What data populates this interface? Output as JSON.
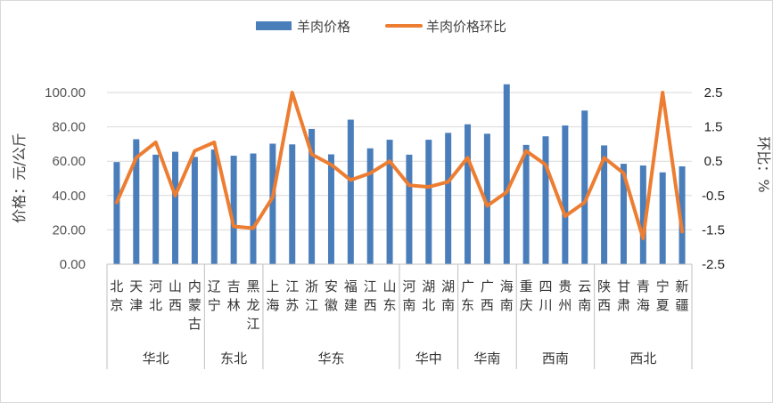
{
  "chart_data": {
    "type": "bar",
    "categories": [
      [
        "北",
        "京"
      ],
      [
        "天",
        "津"
      ],
      [
        "河",
        "北"
      ],
      [
        "山",
        "西"
      ],
      [
        "内",
        "蒙",
        "古"
      ],
      [
        "辽",
        "宁"
      ],
      [
        "吉",
        "林"
      ],
      [
        "黑",
        "龙",
        "江"
      ],
      [
        "上",
        "海"
      ],
      [
        "江",
        "苏"
      ],
      [
        "浙",
        "江"
      ],
      [
        "安",
        "徽"
      ],
      [
        "福",
        "建"
      ],
      [
        "江",
        "西"
      ],
      [
        "山",
        "东"
      ],
      [
        "河",
        "南"
      ],
      [
        "湖",
        "北"
      ],
      [
        "湖",
        "南"
      ],
      [
        "广",
        "东"
      ],
      [
        "广",
        "西"
      ],
      [
        "海",
        "南"
      ],
      [
        "重",
        "庆"
      ],
      [
        "四",
        "川"
      ],
      [
        "贵",
        "州"
      ],
      [
        "云",
        "南"
      ],
      [
        "陕",
        "西"
      ],
      [
        "甘",
        "肃"
      ],
      [
        "青",
        "海"
      ],
      [
        "宁",
        "夏"
      ],
      [
        "新",
        "疆"
      ]
    ],
    "groups": [
      {
        "name": "华北",
        "count": 5
      },
      {
        "name": "东北",
        "count": 3
      },
      {
        "name": "华东",
        "count": 7
      },
      {
        "name": "华中",
        "count": 3
      },
      {
        "name": "华南",
        "count": 3
      },
      {
        "name": "西南",
        "count": 4
      },
      {
        "name": "西北",
        "count": 5
      }
    ],
    "series": [
      {
        "name": "羊肉价格",
        "type": "bar",
        "axis": "left",
        "color": "#4a7ebb",
        "values": [
          59.5,
          72.8,
          63.8,
          65.5,
          62.5,
          66.8,
          63.2,
          64.5,
          70.2,
          69.8,
          78.8,
          64.0,
          84.2,
          67.5,
          72.5,
          63.8,
          72.5,
          76.5,
          81.5,
          76.0,
          104.8,
          69.5,
          74.5,
          80.8,
          89.5,
          69.2,
          58.5,
          57.5,
          53.5,
          57.0
        ]
      },
      {
        "name": "羊肉价格环比",
        "type": "line",
        "axis": "right",
        "color": "#ed7d31",
        "values": [
          -0.7,
          0.6,
          1.05,
          -0.5,
          0.8,
          1.05,
          -1.4,
          -1.45,
          -0.55,
          2.5,
          0.7,
          0.4,
          -0.05,
          0.15,
          0.5,
          -0.2,
          -0.25,
          -0.1,
          0.6,
          -0.8,
          -0.4,
          0.8,
          0.4,
          -1.1,
          -0.7,
          0.6,
          0.15,
          -1.75,
          2.5,
          -1.55
        ]
      }
    ],
    "y_left": {
      "ticks": [
        "0.00",
        "20.00",
        "40.00",
        "60.00",
        "80.00",
        "100.00"
      ],
      "range": [
        0,
        100
      ],
      "label": "价格：元/公斤"
    },
    "y_right": {
      "ticks": [
        "2.5",
        "1.5",
        "0.5",
        "-0.5",
        "-1.5",
        "-2.5"
      ],
      "range": [
        -2.5,
        2.5
      ],
      "label": "环比：%",
      "tick_color": "#c00000"
    },
    "legend": {
      "position": "top"
    },
    "grid": true
  }
}
